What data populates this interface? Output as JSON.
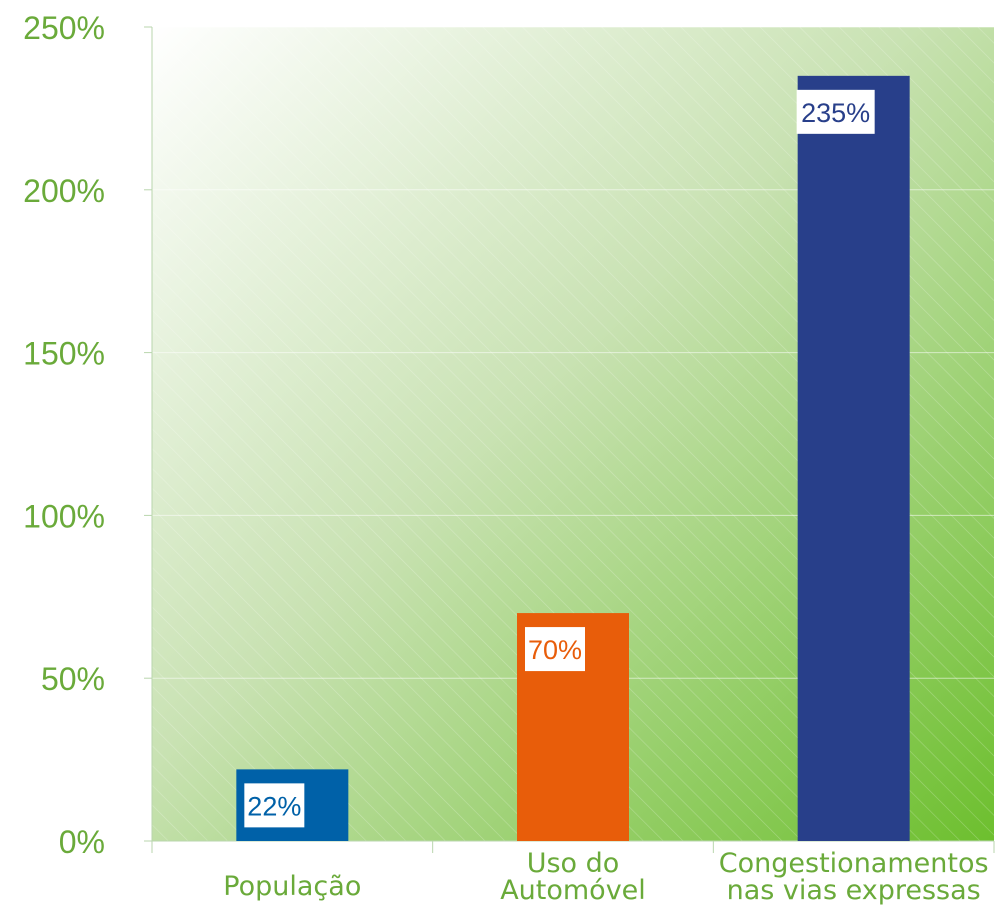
{
  "chart_data": {
    "type": "bar",
    "categories": [
      [
        "População"
      ],
      [
        "Uso do",
        "Automóvel"
      ],
      [
        "Congestionamentos",
        "nas vias expressas"
      ]
    ],
    "values": [
      22,
      70,
      235
    ],
    "data_labels": [
      "22%",
      "70%",
      "235%"
    ],
    "colors": [
      "#0061a8",
      "#e85d0a",
      "#283f8a"
    ],
    "ylim": [
      0,
      250
    ],
    "y_ticks": [
      0,
      50,
      100,
      150,
      200,
      250
    ],
    "y_tick_labels": [
      "0%",
      "50%",
      "100%",
      "150%",
      "200%",
      "250%"
    ],
    "grid": true,
    "legend": "none"
  }
}
